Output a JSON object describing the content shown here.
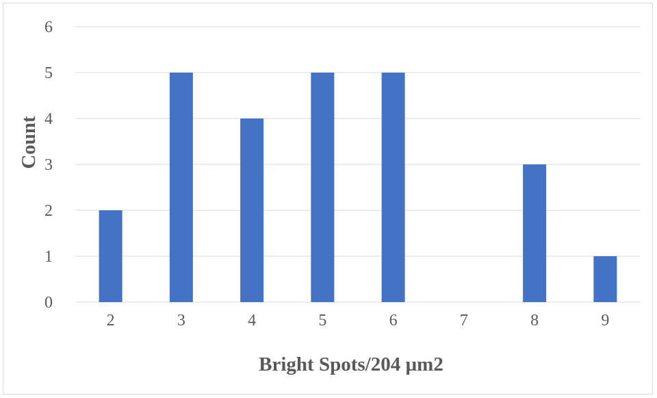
{
  "chart_data": {
    "type": "bar",
    "title": "",
    "xlabel": "Bright Spots/204 µm2",
    "ylabel": "Count",
    "categories": [
      "2",
      "3",
      "4",
      "5",
      "6",
      "7",
      "8",
      "9"
    ],
    "values": [
      2,
      5,
      4,
      5,
      5,
      0,
      3,
      1
    ],
    "ylim": [
      0,
      6
    ],
    "yticks": [
      "0",
      "1",
      "2",
      "3",
      "4",
      "5",
      "6"
    ],
    "grid": true,
    "legend": "none",
    "bar_color": "#4472c4"
  }
}
